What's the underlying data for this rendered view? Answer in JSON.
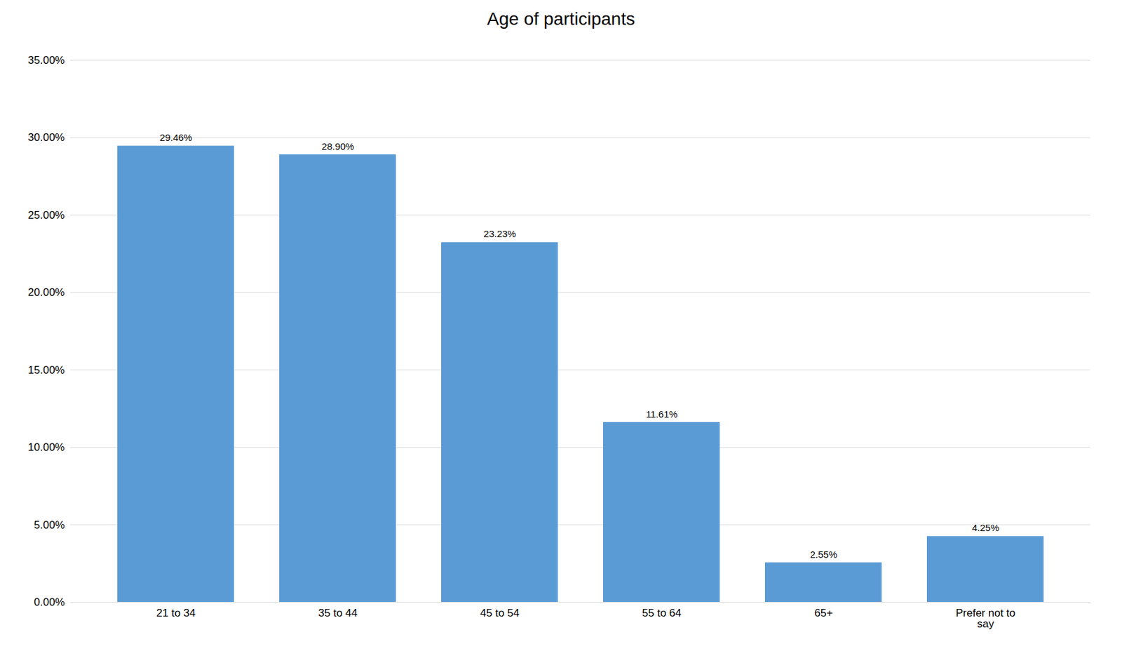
{
  "chart_data": {
    "type": "bar",
    "title": "Age of participants",
    "categories": [
      "21 to 34",
      "35 to 44",
      "45 to 54",
      "55 to 64",
      "65+",
      "Prefer not to\nsay"
    ],
    "values": [
      29.46,
      28.9,
      23.23,
      11.61,
      2.55,
      4.25
    ],
    "value_labels": [
      "29.46%",
      "28.90%",
      "23.23%",
      "11.61%",
      "2.55%",
      "4.25%"
    ],
    "data_labels": true,
    "color": "#5B9BD5",
    "ylim": [
      0,
      35
    ],
    "yticks": [
      {
        "value": 0,
        "label": "0.00%"
      },
      {
        "value": 5,
        "label": "5.00%"
      },
      {
        "value": 10,
        "label": "10.00%"
      },
      {
        "value": 15,
        "label": "15.00%"
      },
      {
        "value": 20,
        "label": "20.00%"
      },
      {
        "value": 25,
        "label": "25.00%"
      },
      {
        "value": 30,
        "label": "30.00%"
      },
      {
        "value": 35,
        "label": "35.00%"
      }
    ],
    "grid": true
  }
}
